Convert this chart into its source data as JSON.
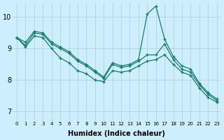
{
  "xlabel": "Humidex (Indice chaleur)",
  "background_color": "#cceeff",
  "grid_color": "#b0cccc",
  "line_color": "#1a7a6e",
  "x_ticks": [
    0,
    1,
    2,
    3,
    4,
    5,
    6,
    7,
    8,
    9,
    10,
    11,
    12,
    13,
    14,
    15,
    16,
    17,
    18,
    19,
    20,
    21,
    22,
    23
  ],
  "y_ticks": [
    7,
    8,
    9,
    10
  ],
  "xlim": [
    -0.5,
    23.5
  ],
  "ylim": [
    6.7,
    10.45
  ],
  "series": {
    "line_spike": [
      9.35,
      9.2,
      9.55,
      9.5,
      9.2,
      9.05,
      8.9,
      8.65,
      8.5,
      8.3,
      8.1,
      8.55,
      8.45,
      8.5,
      8.65,
      10.1,
      10.35,
      9.3,
      8.75,
      8.45,
      8.35,
      7.9,
      7.6,
      7.4
    ],
    "line_mid": [
      9.35,
      9.1,
      9.5,
      9.45,
      9.15,
      9.0,
      8.85,
      8.6,
      8.45,
      8.25,
      8.05,
      8.5,
      8.4,
      8.45,
      8.6,
      8.8,
      8.8,
      9.15,
      8.65,
      8.35,
      8.25,
      7.85,
      7.55,
      7.35
    ],
    "line_low": [
      9.35,
      9.05,
      9.4,
      9.35,
      9.0,
      8.7,
      8.55,
      8.3,
      8.2,
      8.0,
      7.95,
      8.3,
      8.25,
      8.3,
      8.45,
      8.6,
      8.65,
      8.8,
      8.5,
      8.25,
      8.15,
      7.75,
      7.45,
      7.3
    ]
  }
}
